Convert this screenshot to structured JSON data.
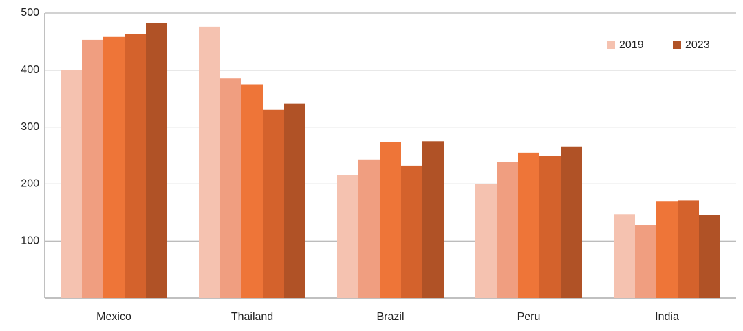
{
  "chart_data": {
    "type": "bar",
    "categories": [
      "Mexico",
      "Thailand",
      "Brazil",
      "Peru",
      "India"
    ],
    "series": [
      {
        "name": "2019",
        "color": "#f5c2b0",
        "values": [
          400,
          476,
          215,
          200,
          147
        ]
      },
      {
        "color": "#f09e80",
        "values": [
          453,
          385,
          243,
          239,
          128
        ]
      },
      {
        "color": "#ee7538",
        "values": [
          458,
          375,
          273,
          255,
          170
        ]
      },
      {
        "color": "#d4622c",
        "values": [
          463,
          330,
          232,
          250,
          171
        ]
      },
      {
        "name": "2023",
        "color": "#b05226",
        "values": [
          482,
          341,
          275,
          266,
          145
        ]
      }
    ],
    "ylim": [
      0,
      500
    ],
    "yticks": [
      100,
      200,
      300,
      400,
      500
    ],
    "grid": true,
    "legend": "top-right"
  }
}
